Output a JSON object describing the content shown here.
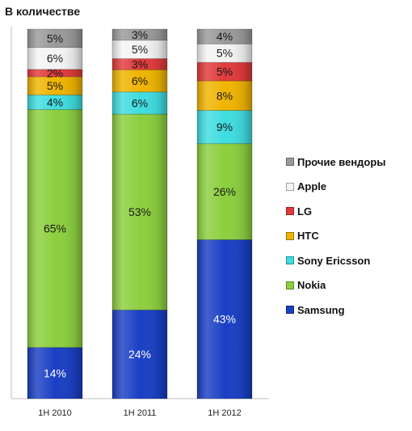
{
  "chart_data": {
    "type": "bar",
    "stacked": true,
    "title": "В количестве",
    "categories": [
      "1H 2010",
      "1H 2011",
      "1H 2012"
    ],
    "series": [
      {
        "name": "Samsung",
        "color": "#1a3fc4",
        "values": [
          14,
          24,
          43
        ],
        "labels": [
          "14%",
          "24%",
          "43%"
        ]
      },
      {
        "name": "Nokia",
        "color": "#8ccf3e",
        "values": [
          65,
          53,
          26
        ],
        "labels": [
          "65%",
          "53%",
          "26%"
        ]
      },
      {
        "name": "Sony Ericsson",
        "color": "#3fdde0",
        "values": [
          4,
          6,
          9
        ],
        "labels": [
          "4%",
          "6%",
          "9%"
        ]
      },
      {
        "name": "HTC",
        "color": "#f0b400",
        "values": [
          5,
          6,
          8
        ],
        "labels": [
          "5%",
          "6%",
          "8%"
        ]
      },
      {
        "name": "LG",
        "color": "#e23a3a",
        "values": [
          2,
          3,
          5
        ],
        "labels": [
          "2%",
          "3%",
          "5%"
        ]
      },
      {
        "name": "Apple",
        "color": "#f4f4f4",
        "values": [
          6,
          5,
          5
        ],
        "labels": [
          "6%",
          "5%",
          "5%"
        ]
      },
      {
        "name": "Прочие вендоры",
        "color": "#9a9a9a",
        "values": [
          5,
          3,
          4
        ],
        "labels": [
          "5%",
          "3%",
          "4%"
        ]
      }
    ],
    "ylim": [
      0,
      100
    ],
    "legend_position": "right",
    "grid": false
  },
  "legend": {
    "items": [
      {
        "label": "Прочие вендоры",
        "color": "#9a9a9a"
      },
      {
        "label": "Apple",
        "color": "#f4f4f4"
      },
      {
        "label": "LG",
        "color": "#e23a3a"
      },
      {
        "label": "HTC",
        "color": "#f0b400"
      },
      {
        "label": "Sony Ericsson",
        "color": "#3fdde0"
      },
      {
        "label": "Nokia",
        "color": "#8ccf3e"
      },
      {
        "label": "Samsung",
        "color": "#1a3fc4"
      }
    ]
  }
}
